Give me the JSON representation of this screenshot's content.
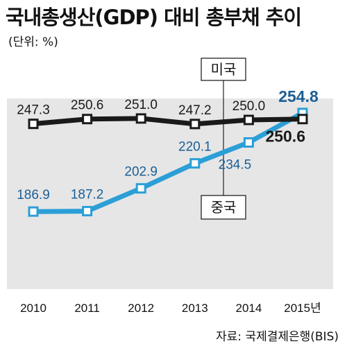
{
  "header": {
    "title": "국내총생산(GDP) 대비 총부채 추이",
    "unit": "(단위: %)"
  },
  "footer": {
    "source": "자료: 국제결제은행(BIS)"
  },
  "chart_data": {
    "type": "line",
    "title": "국내총생산(GDP) 대비 총부채 추이",
    "xlabel": "",
    "ylabel": "",
    "categories": [
      "2010",
      "2011",
      "2012",
      "2013",
      "2014",
      "2015년"
    ],
    "series": [
      {
        "name": "미국",
        "values": [
          247.3,
          250.6,
          251.0,
          247.2,
          250.0,
          250.6
        ],
        "labels": [
          "247.3",
          "250.6",
          "251.0",
          "247.2",
          "250.0",
          "250.6"
        ],
        "color": "#1a1a1a"
      },
      {
        "name": "중국",
        "values": [
          186.9,
          187.2,
          202.9,
          220.1,
          234.5,
          254.8
        ],
        "labels": [
          "186.9",
          "187.2",
          "202.9",
          "220.1",
          "234.5",
          "254.8"
        ],
        "color": "#2b9fd6"
      }
    ],
    "grid": false,
    "background": "#e6e6e6",
    "label_color_china": "#1b5f96"
  }
}
